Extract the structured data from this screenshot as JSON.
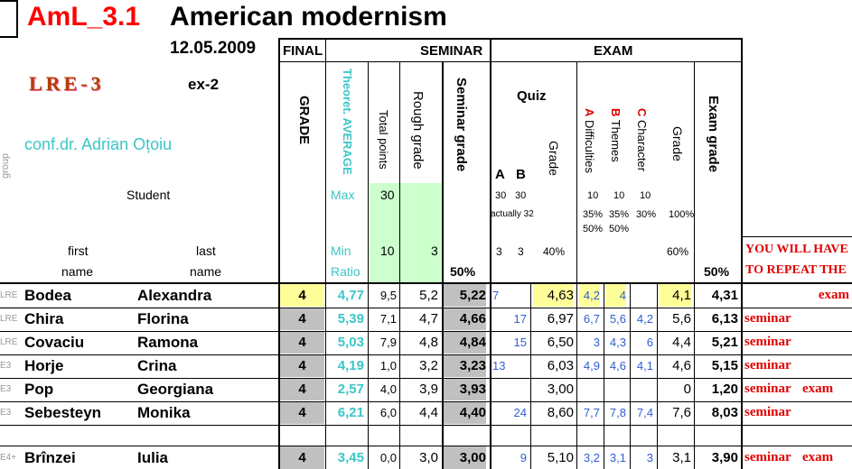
{
  "title": {
    "code": "AmL_3.1",
    "name": "American modernism"
  },
  "date": "12.05.2009",
  "group_code": "LRE-3",
  "exercise": "ex-2",
  "teacher": "conf.dr. Adrian Oțoiu",
  "group_label": "group",
  "student_label": "Student",
  "first_label": "first",
  "last_label": "last",
  "name_label": "name",
  "sections": {
    "final": "FINAL",
    "seminar": "SEMINAR",
    "exam": "EXAM"
  },
  "headers": {
    "grade": "GRADE",
    "theoret": "Theoret. AVERAGE",
    "total_points": "Total points",
    "rough_grade": "Rough grade",
    "seminar_grade": "Seminar grade",
    "quiz": "Quiz",
    "quiz_a": "A",
    "quiz_b": "B",
    "quiz_grade": "Grade",
    "diff_letter": "A",
    "diff_word": "Difficulties",
    "themes_letter": "B",
    "themes_word": "Themes",
    "char_letter": "C",
    "char_word": "Character",
    "exam_sub_grade": "Grade",
    "exam_grade": "Exam grade"
  },
  "max_row": {
    "label": "Max",
    "total": "30",
    "a": "30",
    "b": "30",
    "actually": "actually 32",
    "diff": "10",
    "themes": "10",
    "char": "10",
    "diff_pct": "35%",
    "themes_pct": "35%",
    "char_pct": "30%",
    "grade_pct": "100%",
    "diff_pct2": "50%",
    "themes_pct2": "50%"
  },
  "min_row": {
    "label": "Min",
    "total": "10",
    "rough": "3",
    "a": "3",
    "b": "3",
    "quiz_pct": "40%",
    "grade_pct": "60%"
  },
  "ratio_row": {
    "label": "Ratio",
    "seminar_pct": "50%",
    "exam_pct": "50%"
  },
  "notice": {
    "line1": "YOU WILL HAVE",
    "line2": "TO REPEAT THE"
  },
  "students": [
    {
      "group": "LRE",
      "first": "Bodea",
      "last": "Alexandra",
      "grade": "4",
      "avg": "4,77",
      "total": "9,5",
      "rough": "5,2",
      "sem": "5,22",
      "qa": "7",
      "qb": "",
      "qgrade": "4,63",
      "diff": "4,2",
      "themes": "4",
      "char": "",
      "egrade": "4,1",
      "exam": "4,31",
      "r1": "",
      "r2": "exam"
    },
    {
      "group": "LRE",
      "first": "Chira",
      "last": "Florina",
      "grade": "4",
      "avg": "5,39",
      "total": "7,1",
      "rough": "4,7",
      "sem": "4,66",
      "qa": "",
      "qb": "17",
      "qgrade": "6,97",
      "diff": "6,7",
      "themes": "5,6",
      "char": "4,2",
      "egrade": "5,6",
      "exam": "6,13",
      "r1": "seminar",
      "r2": ""
    },
    {
      "group": "LRE",
      "first": "Covaciu",
      "last": "Ramona",
      "grade": "4",
      "avg": "5,03",
      "total": "7,9",
      "rough": "4,8",
      "sem": "4,84",
      "qa": "",
      "qb": "15",
      "qgrade": "6,50",
      "diff": "3",
      "themes": "4,3",
      "char": "6",
      "egrade": "4,4",
      "exam": "5,21",
      "r1": "seminar",
      "r2": ""
    },
    {
      "group": "E3",
      "first": "Horje",
      "last": "Crina",
      "grade": "4",
      "avg": "4,19",
      "total": "1,0",
      "rough": "3,2",
      "sem": "3,23",
      "qa": "13",
      "qb": "",
      "qgrade": "6,03",
      "diff": "4,9",
      "themes": "4,6",
      "char": "4,1",
      "egrade": "4,6",
      "exam": "5,15",
      "r1": "seminar",
      "r2": ""
    },
    {
      "group": "E3",
      "first": "Pop",
      "last": "Georgiana",
      "grade": "4",
      "avg": "2,57",
      "total": "4,0",
      "rough": "3,9",
      "sem": "3,93",
      "qa": "",
      "qb": "",
      "qgrade": "3,00",
      "diff": "",
      "themes": "",
      "char": "",
      "egrade": "0",
      "exam": "1,20",
      "r1": "seminar",
      "r2": "exam"
    },
    {
      "group": "E3",
      "first": "Sebesteyn",
      "last": "Monika",
      "grade": "4",
      "avg": "6,21",
      "total": "6,0",
      "rough": "4,4",
      "sem": "4,40",
      "qa": "",
      "qb": "24",
      "qgrade": "8,60",
      "diff": "7,7",
      "themes": "7,8",
      "char": "7,4",
      "egrade": "7,6",
      "exam": "8,03",
      "r1": "seminar",
      "r2": ""
    },
    {
      "group": "E4+",
      "first": "Brînzei",
      "last": "Iulia",
      "grade": "4",
      "avg": "3,45",
      "total": "0,0",
      "rough": "3,0",
      "sem": "3,00",
      "qa": "",
      "qb": "9",
      "qgrade": "5,10",
      "diff": "3,2",
      "themes": "3,1",
      "char": "3",
      "egrade": "3,1",
      "exam": "3,90",
      "r1": "seminar",
      "r2": "exam"
    }
  ],
  "colors": {
    "red_title": "#ff0000",
    "teal": "#3cc6c6",
    "blue": "#2f5fd0",
    "green_fill": "#ccffcc",
    "yellow_fill": "#ffff99",
    "grey_fill": "#c0c0c0",
    "notice_red": "#e00000"
  }
}
